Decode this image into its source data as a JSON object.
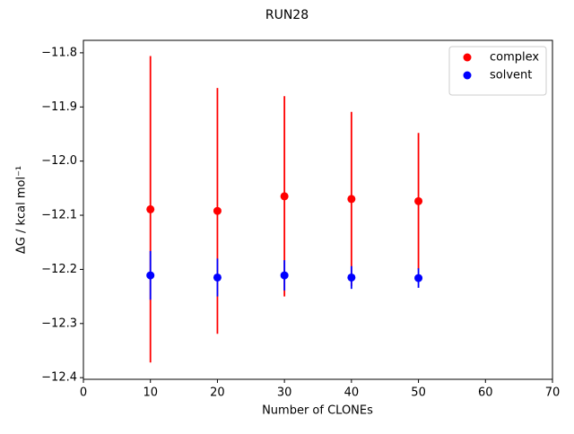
{
  "chart_data": {
    "type": "errorbar",
    "title": "RUN28",
    "xlabel": "Number of CLONEs",
    "ylabel": "ΔG / kcal mol⁻¹",
    "xlim": [
      0,
      70
    ],
    "xticks": [
      0,
      10,
      20,
      30,
      40,
      50,
      60,
      70
    ],
    "ylim": [
      -12.403,
      -11.777
    ],
    "yticks": [
      {
        "value": -12.4,
        "label": "−12.4"
      },
      {
        "value": -12.3,
        "label": "−12.3"
      },
      {
        "value": -12.2,
        "label": "−12.2"
      },
      {
        "value": -12.1,
        "label": "−12.1"
      },
      {
        "value": -12.0,
        "label": "−12.0"
      },
      {
        "value": -11.9,
        "label": "−11.9"
      },
      {
        "value": -11.8,
        "label": "−11.8"
      }
    ],
    "legend": "upper right",
    "x": [
      10,
      20,
      30,
      40,
      50
    ],
    "series": [
      {
        "name": "complex",
        "color": "#ff0000",
        "values": [
          -12.089,
          -12.092,
          -12.065,
          -12.07,
          -12.074
        ],
        "errors": [
          0.283,
          0.227,
          0.185,
          0.161,
          0.126
        ]
      },
      {
        "name": "solvent",
        "color": "#0000ff",
        "values": [
          -12.211,
          -12.215,
          -12.211,
          -12.215,
          -12.216
        ],
        "errors": [
          0.045,
          0.035,
          0.028,
          0.021,
          0.018
        ]
      }
    ]
  }
}
